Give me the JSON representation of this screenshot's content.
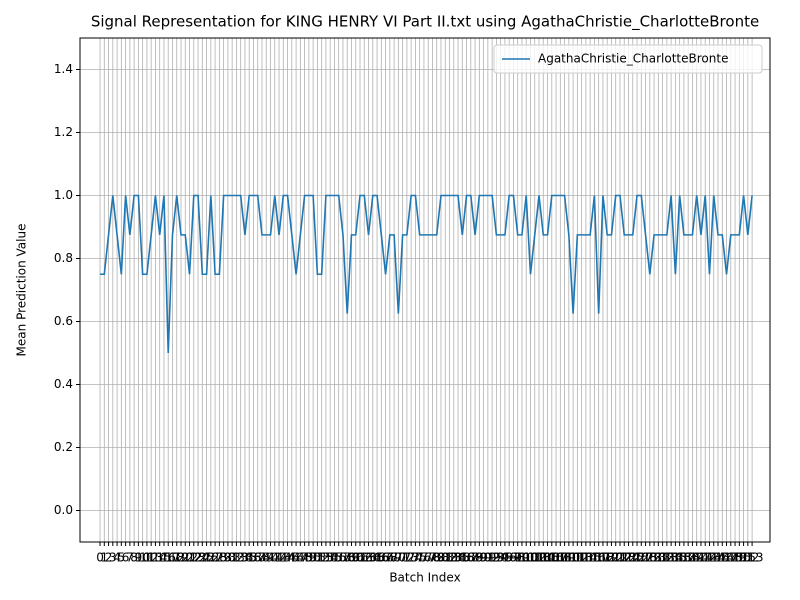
{
  "chart_data": {
    "type": "line",
    "title": "Signal Representation for KING HENRY VI Part II.txt using AgathaChristie_CharlotteBronte",
    "x_label": "Batch Index",
    "y_label": "Mean Prediction Value",
    "x": [
      0,
      1,
      2,
      3,
      4,
      5,
      6,
      7,
      8,
      9,
      10,
      11,
      12,
      13,
      14,
      15,
      16,
      17,
      18,
      19,
      20,
      21,
      22,
      23,
      24,
      25,
      26,
      27,
      28,
      29,
      30,
      31,
      32,
      33,
      34,
      35,
      36,
      37,
      38,
      39,
      40,
      41,
      42,
      43,
      44,
      45,
      46,
      47,
      48,
      49,
      50,
      51,
      52,
      53,
      54,
      55,
      56,
      57,
      58,
      59,
      60,
      61,
      62,
      63,
      64,
      65,
      66,
      67,
      68,
      69,
      70,
      71,
      72,
      73,
      74,
      75,
      76,
      77,
      78,
      79,
      80,
      81,
      82,
      83,
      84,
      85,
      86,
      87,
      88,
      89,
      90,
      91,
      92,
      93,
      94,
      95,
      96,
      97,
      98,
      99,
      100,
      101,
      102,
      103,
      104,
      105,
      106,
      107,
      108,
      109,
      110,
      111,
      112,
      113,
      114,
      115,
      116,
      117,
      118,
      119,
      120,
      121,
      122,
      123,
      124,
      125,
      126,
      127,
      128,
      129,
      130,
      131,
      132,
      133,
      134,
      135,
      136,
      137,
      138,
      139,
      140,
      141,
      142,
      143,
      144,
      145,
      146,
      147,
      148,
      149,
      150,
      151,
      152,
      153
    ],
    "series": [
      {
        "name": "AgathaChristie_CharlotteBronte",
        "color": "#1f77b4",
        "values": [
          0.75,
          0.75,
          0.875,
          1,
          0.875,
          0.75,
          1,
          0.875,
          1,
          1,
          0.75,
          0.75,
          0.875,
          1,
          0.875,
          1,
          0.5,
          0.875,
          1,
          0.875,
          0.875,
          0.75,
          1,
          1,
          0.75,
          0.75,
          1,
          0.75,
          0.75,
          1,
          1,
          1,
          1,
          1,
          0.875,
          1,
          1,
          1,
          0.875,
          0.875,
          0.875,
          1,
          0.875,
          1,
          1,
          0.875,
          0.75,
          0.875,
          1,
          1,
          1,
          0.75,
          0.75,
          1,
          1,
          1,
          1,
          0.875,
          0.625,
          0.875,
          0.875,
          1,
          1,
          0.875,
          1,
          1,
          0.875,
          0.75,
          0.875,
          0.875,
          0.625,
          0.875,
          0.875,
          1,
          1,
          0.875,
          0.875,
          0.875,
          0.875,
          0.875,
          1,
          1,
          1,
          1,
          1,
          0.875,
          1,
          1,
          0.875,
          1,
          1,
          1,
          1,
          0.875,
          0.875,
          0.875,
          1,
          1,
          0.875,
          0.875,
          1,
          0.75,
          0.875,
          1,
          0.875,
          0.875,
          1,
          1,
          1,
          1,
          0.875,
          0.625,
          0.875,
          0.875,
          0.875,
          0.875,
          1,
          0.625,
          1,
          0.875,
          0.875,
          1,
          1,
          0.875,
          0.875,
          0.875,
          1,
          1,
          0.875,
          0.75,
          0.875,
          0.875,
          0.875,
          0.875,
          1,
          0.75,
          1,
          0.875,
          0.875,
          0.875,
          1,
          0.875,
          1,
          0.75,
          1,
          0.875,
          0.875,
          0.75,
          0.875,
          0.875,
          0.875,
          1,
          0.875,
          1
        ]
      }
    ],
    "xlim": [
      -4.7,
      157.2
    ],
    "xticks": [
      0,
      1,
      2,
      3,
      4,
      5,
      6,
      7,
      8,
      9,
      10,
      11,
      12,
      13,
      14,
      15,
      16,
      17,
      18,
      19,
      20,
      21,
      22,
      23,
      24,
      25,
      26,
      27,
      28,
      29,
      30,
      31,
      32,
      33,
      34,
      35,
      36,
      37,
      38,
      39,
      40,
      41,
      42,
      43,
      44,
      45,
      46,
      47,
      48,
      49,
      50,
      51,
      52,
      53,
      54,
      55,
      56,
      57,
      58,
      59,
      60,
      61,
      62,
      63,
      64,
      65,
      66,
      67,
      68,
      69,
      70,
      71,
      72,
      73,
      74,
      75,
      76,
      77,
      78,
      79,
      80,
      81,
      82,
      83,
      84,
      85,
      86,
      87,
      88,
      89,
      90,
      91,
      92,
      93,
      94,
      95,
      96,
      97,
      98,
      99,
      100,
      101,
      102,
      103,
      104,
      105,
      106,
      107,
      108,
      109,
      110,
      111,
      112,
      113,
      114,
      115,
      116,
      117,
      118,
      119,
      120,
      121,
      122,
      123,
      124,
      125,
      126,
      127,
      128,
      129,
      130,
      131,
      132,
      133,
      134,
      135,
      136,
      137,
      138,
      139,
      140,
      141,
      142,
      143,
      144,
      145,
      146,
      147,
      148,
      149,
      150,
      151,
      152,
      153
    ],
    "ylim": [
      -0.1,
      1.5
    ],
    "yticks": [
      {
        "value": 0,
        "label": "0.0"
      },
      {
        "value": 0.2,
        "label": "0.2"
      },
      {
        "value": 0.4,
        "label": "0.4"
      },
      {
        "value": 0.6,
        "label": "0.6"
      },
      {
        "value": 0.8,
        "label": "0.8"
      },
      {
        "value": 1,
        "label": "1.0"
      },
      {
        "value": 1.2,
        "label": "1.2"
      },
      {
        "value": 1.4,
        "label": "1.4"
      }
    ],
    "grid": true,
    "legend": "upper right"
  }
}
